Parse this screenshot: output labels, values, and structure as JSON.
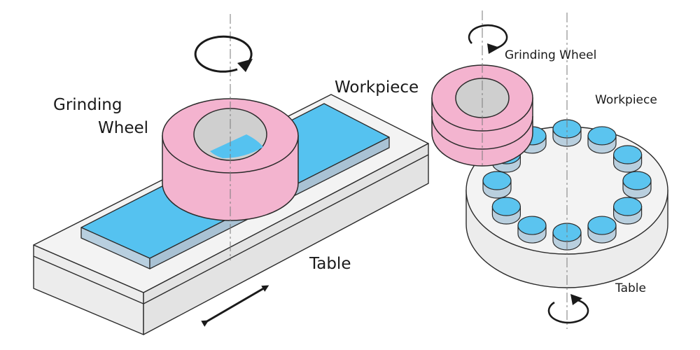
{
  "surface_grinder": {
    "label_wheel_line1": "Grinding",
    "label_wheel_line2": "Wheel",
    "label_workpiece": "Workpiece",
    "label_table": "Table"
  },
  "rotary_grinder": {
    "label_wheel": "Grinding Wheel",
    "label_workpiece": "Workpiece",
    "label_table": "Table",
    "workpiece_count": 12
  },
  "colors": {
    "wheel_pink": "#f4b3cf",
    "wheel_hole": "#cfcfcf",
    "workpiece_blue": "#5bc4ef",
    "workpiece_side": "#b9cfde",
    "table_face": "#f2f2f2",
    "outline": "#2b2b2b"
  }
}
